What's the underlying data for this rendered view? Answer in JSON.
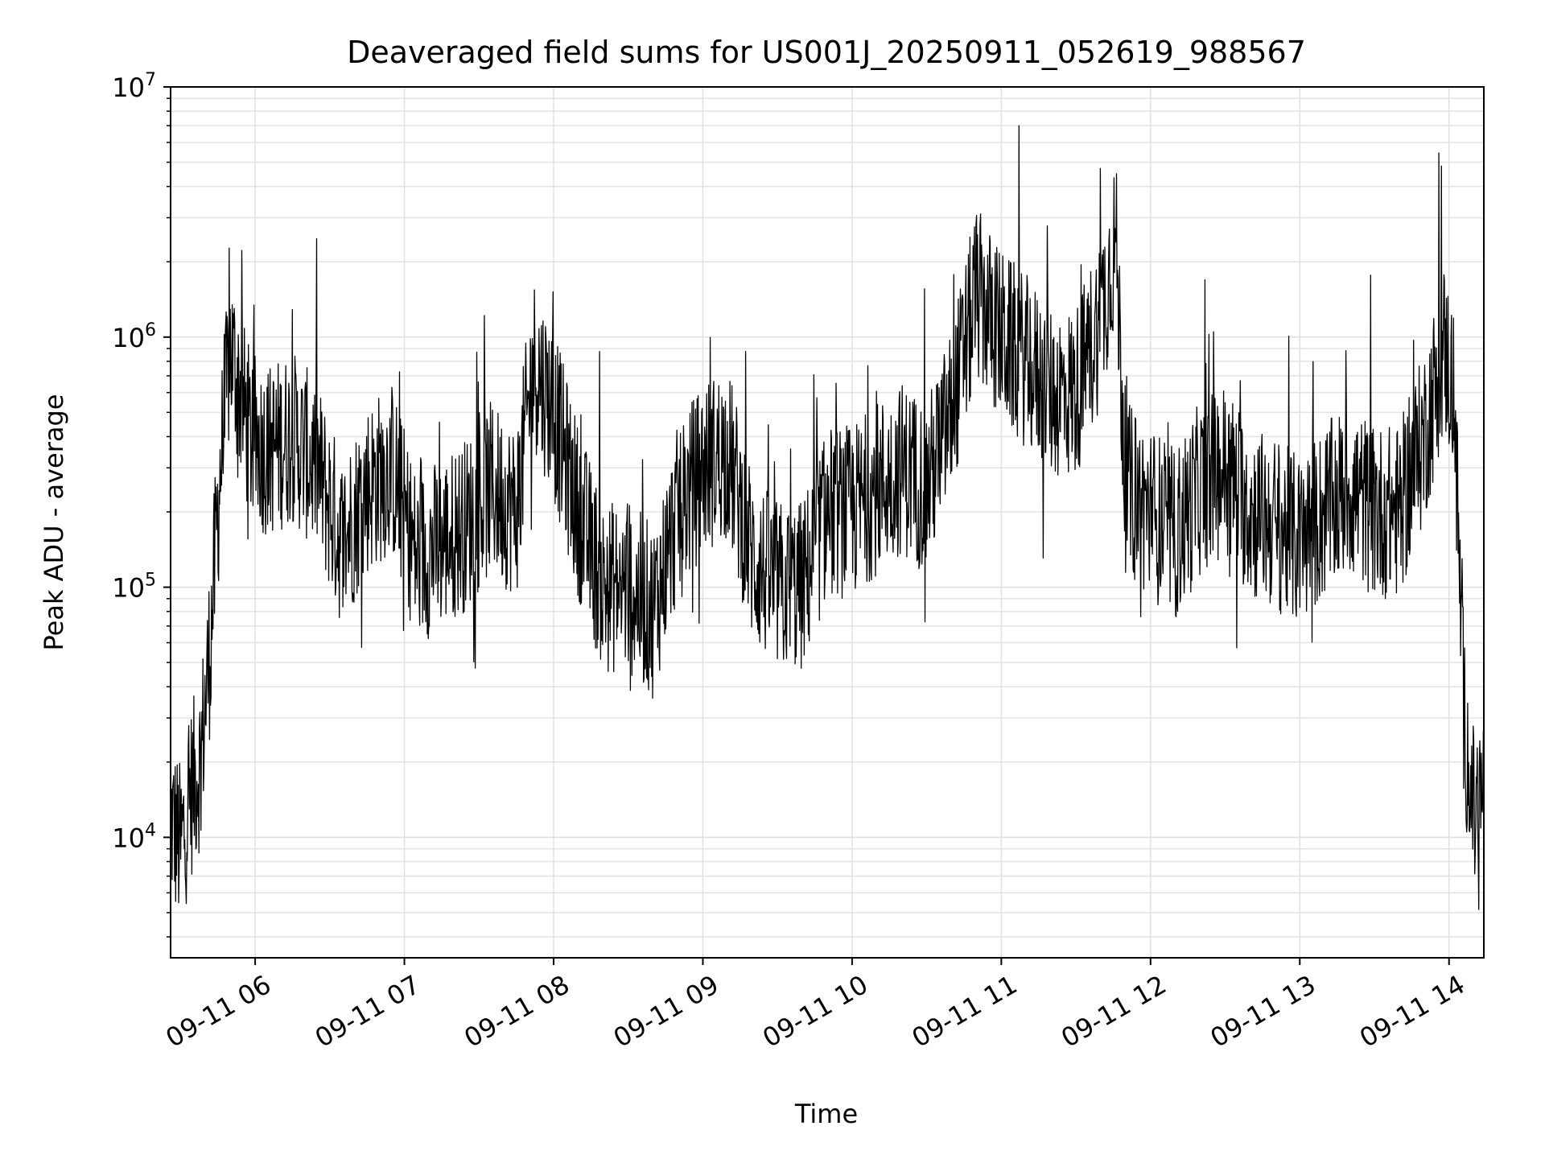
{
  "chart_data": {
    "type": "line",
    "title": "Deaveraged field sums for US001J_20250911_052619_988567",
    "xlabel": "Time",
    "ylabel": "Peak ADU - average",
    "y_scale": "log",
    "ylim": [
      3300,
      10000000
    ],
    "xlim": [
      "2025-09-11 05:26",
      "2025-09-11 14:14"
    ],
    "grid": true,
    "line_color": "#000000",
    "x_ticks": [
      "09-11 06",
      "09-11 07",
      "09-11 08",
      "09-11 09",
      "09-11 10",
      "09-11 11",
      "09-11 12",
      "09-11 13",
      "09-11 14"
    ],
    "y_ticks": [
      {
        "base": "10",
        "exp": "4",
        "value": 10000
      },
      {
        "base": "10",
        "exp": "5",
        "value": 100000
      },
      {
        "base": "10",
        "exp": "6",
        "value": 1000000
      },
      {
        "base": "10",
        "exp": "7",
        "value": 10000000
      }
    ],
    "series": [
      {
        "x": [
          "2025-09-11 05:26",
          "2025-09-11 05:30",
          "2025-09-11 05:34",
          "2025-09-11 05:38",
          "2025-09-11 05:42",
          "2025-09-11 05:46",
          "2025-09-11 05:50",
          "2025-09-11 05:54",
          "2025-09-11 05:58",
          "2025-09-11 06:05",
          "2025-09-11 06:15",
          "2025-09-11 06:25",
          "2025-09-11 06:35",
          "2025-09-11 06:45",
          "2025-09-11 06:55",
          "2025-09-11 07:05",
          "2025-09-11 07:15",
          "2025-09-11 07:25",
          "2025-09-11 07:35",
          "2025-09-11 07:45",
          "2025-09-11 07:52",
          "2025-09-11 08:00",
          "2025-09-11 08:10",
          "2025-09-11 08:20",
          "2025-09-11 08:30",
          "2025-09-11 08:40",
          "2025-09-11 08:50",
          "2025-09-11 09:00",
          "2025-09-11 09:10",
          "2025-09-11 09:20",
          "2025-09-11 09:30",
          "2025-09-11 09:40",
          "2025-09-11 09:50",
          "2025-09-11 10:00",
          "2025-09-11 10:10",
          "2025-09-11 10:20",
          "2025-09-11 10:30",
          "2025-09-11 10:40",
          "2025-09-11 10:50",
          "2025-09-11 11:00",
          "2025-09-11 11:10",
          "2025-09-11 11:20",
          "2025-09-11 11:30",
          "2025-09-11 11:40",
          "2025-09-11 11:46",
          "2025-09-11 11:50",
          "2025-09-11 12:00",
          "2025-09-11 12:10",
          "2025-09-11 12:20",
          "2025-09-11 12:30",
          "2025-09-11 12:40",
          "2025-09-11 12:50",
          "2025-09-11 13:00",
          "2025-09-11 13:10",
          "2025-09-11 13:20",
          "2025-09-11 13:30",
          "2025-09-11 13:40",
          "2025-09-11 13:50",
          "2025-09-11 13:58",
          "2025-09-11 14:02",
          "2025-09-11 14:06",
          "2025-09-11 14:10",
          "2025-09-11 14:14"
        ],
        "y": [
          12000,
          9000,
          15000,
          20000,
          60000,
          300000,
          900000,
          600000,
          400000,
          350000,
          400000,
          300000,
          150000,
          250000,
          300000,
          130000,
          150000,
          180000,
          250000,
          200000,
          800000,
          500000,
          200000,
          100000,
          100000,
          80000,
          200000,
          300000,
          350000,
          130000,
          100000,
          100000,
          200000,
          200000,
          250000,
          300000,
          250000,
          500000,
          1500000,
          1000000,
          800000,
          600000,
          600000,
          1200000,
          2500000,
          250000,
          200000,
          160000,
          250000,
          300000,
          200000,
          180000,
          150000,
          200000,
          250000,
          200000,
          200000,
          400000,
          900000,
          600000,
          30000,
          12000,
          15000
        ]
      }
    ]
  }
}
